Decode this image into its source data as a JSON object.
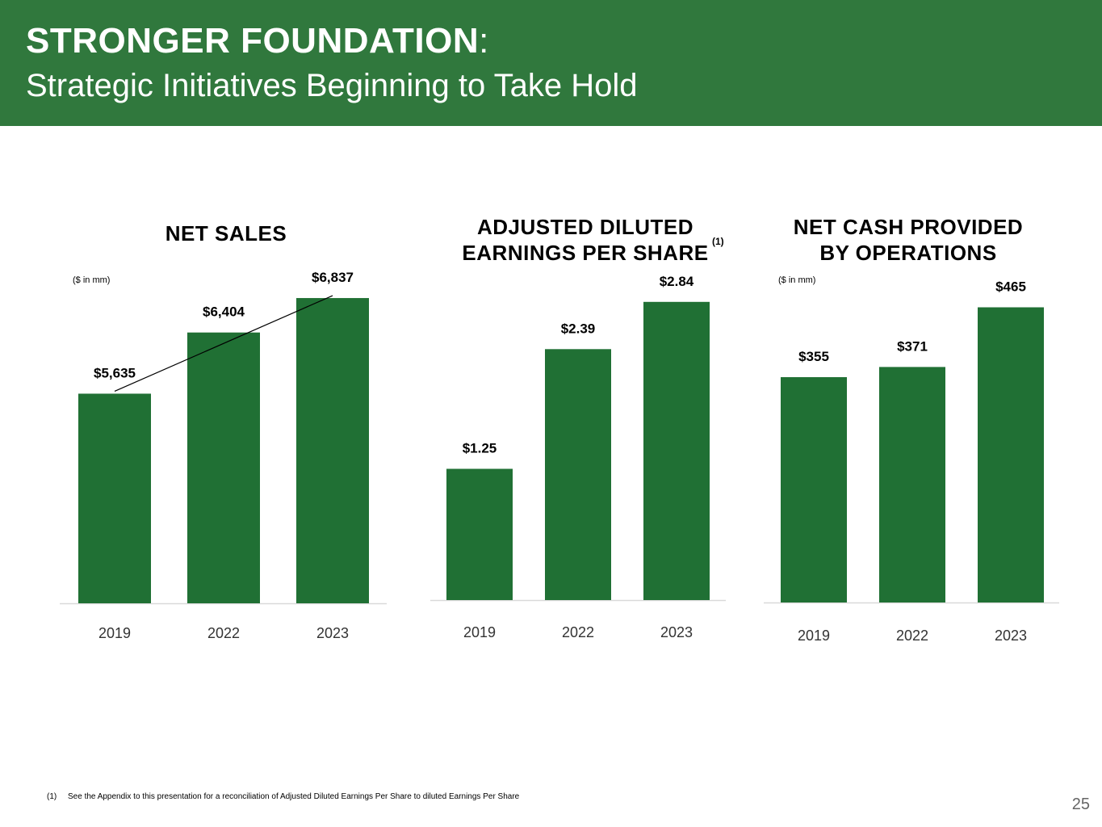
{
  "header": {
    "title_bold": "STRONGER FOUNDATION",
    "title_colon": ":",
    "subtitle": "Strategic Initiatives Beginning to Take Hold"
  },
  "colors": {
    "header_bg": "#30783d",
    "bar": "#207034",
    "axis": "#d9d9d9",
    "text": "#000000"
  },
  "chart_data": [
    {
      "type": "bar",
      "title": "NET SALES",
      "unit_note": "($ in mm)",
      "categories": [
        "2019",
        "2022",
        "2023"
      ],
      "values": [
        5635,
        6404,
        6837
      ],
      "labels": [
        "$5,635",
        "$6,404",
        "$6,837"
      ],
      "ylim": [
        3000,
        7000
      ],
      "trendline": true
    },
    {
      "type": "bar",
      "title_line1": "ADJUSTED DILUTED",
      "title_line2": "EARNINGS PER SHARE",
      "footnote_marker": "(1)",
      "categories": [
        "2019",
        "2022",
        "2023"
      ],
      "values": [
        1.25,
        2.39,
        2.84
      ],
      "labels": [
        "$1.25",
        "$2.39",
        "$2.84"
      ],
      "ylim": [
        0,
        3.0
      ]
    },
    {
      "type": "bar",
      "title_line1": "NET CASH PROVIDED",
      "title_line2": "BY OPERATIONS",
      "unit_note": "($ in mm)",
      "categories": [
        "2019",
        "2022",
        "2023"
      ],
      "values": [
        355,
        371,
        465
      ],
      "labels": [
        "$355",
        "$371",
        "$465"
      ],
      "ylim": [
        0,
        500
      ]
    }
  ],
  "footnote": {
    "marker": "(1)",
    "text": "See the Appendix to this presentation for a reconciliation of Adjusted Diluted Earnings Per Share to diluted Earnings Per Share"
  },
  "page_number": "25"
}
